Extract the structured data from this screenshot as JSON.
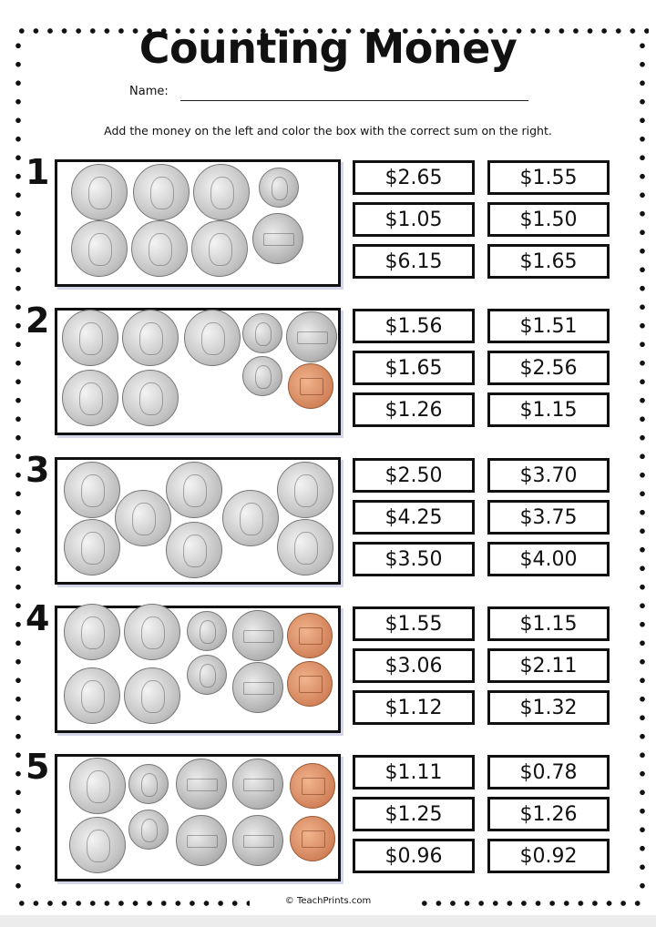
{
  "title": "Counting Money",
  "name_label": "Name:",
  "instructions": "Add the money on the left and color the box with the correct sum on the right.",
  "problems": [
    {
      "number": "1",
      "coins": [
        "quarter",
        "quarter",
        "quarter",
        "dime",
        "quarter",
        "quarter",
        "quarter",
        "nickel"
      ],
      "choices": [
        "$2.65",
        "$1.55",
        "$1.05",
        "$1.50",
        "$6.15",
        "$1.65"
      ]
    },
    {
      "number": "2",
      "coins": [
        "quarter",
        "quarter",
        "quarter",
        "dime",
        "nickel",
        "quarter",
        "quarter",
        "dime",
        "penny"
      ],
      "choices": [
        "$1.56",
        "$1.51",
        "$1.65",
        "$2.56",
        "$1.26",
        "$1.15"
      ]
    },
    {
      "number": "3",
      "coins": [
        "quarter",
        "quarter",
        "quarter",
        "quarter",
        "quarter",
        "quarter",
        "quarter",
        "quarter"
      ],
      "choices": [
        "$2.50",
        "$3.70",
        "$4.25",
        "$3.75",
        "$3.50",
        "$4.00"
      ]
    },
    {
      "number": "4",
      "coins": [
        "quarter",
        "quarter",
        "quarter",
        "quarter",
        "dime",
        "dime",
        "nickel",
        "nickel",
        "penny",
        "penny"
      ],
      "choices": [
        "$1.55",
        "$1.15",
        "$3.06",
        "$2.11",
        "$1.12",
        "$1.32"
      ]
    },
    {
      "number": "5",
      "coins": [
        "quarter",
        "quarter",
        "dime",
        "dime",
        "nickel",
        "nickel",
        "nickel",
        "nickel",
        "penny",
        "penny"
      ],
      "choices": [
        "$1.11",
        "$0.78",
        "$1.25",
        "$1.26",
        "$0.96",
        "$0.92"
      ]
    }
  ],
  "footer": "© TeachPrints.com"
}
